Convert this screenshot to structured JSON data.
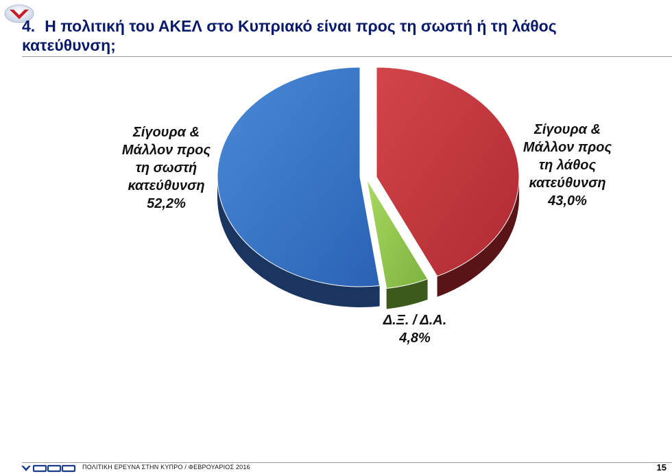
{
  "header": {
    "number": "4.",
    "title": "Η πολιτική του ΑΚΕΛ στο Κυπριακό είναι προς τη σωστή ή τη λάθος κατεύθυνση;"
  },
  "chart_data": {
    "type": "pie",
    "title": "",
    "slices": [
      {
        "label": "Σίγουρα & Μάλλον προς τη λάθος κατεύθυνση",
        "value": 43.0,
        "value_label": "43,0%",
        "color": "#c0343a"
      },
      {
        "label": "Δ.Ξ. / Δ.Α.",
        "value": 4.8,
        "value_label": "4,8%",
        "color": "#8bc34a"
      },
      {
        "label": "Σίγουρα & Μάλλον προς τη σωστή κατεύθυνση",
        "value": 52.2,
        "value_label": "52,2%",
        "color": "#2f6fc0"
      }
    ],
    "labels": {
      "right": [
        "Σίγουρα &",
        "Μάλλον προς",
        "τη λάθος",
        "κατεύθυνση",
        "43,0%"
      ],
      "left": [
        "Σίγουρα &",
        "Μάλλον προς",
        "τη σωστή",
        "κατεύθυνση",
        "52,2%"
      ],
      "dk": [
        "Δ.Ξ. / Δ.Α.",
        "4,8%"
      ]
    }
  },
  "footer": {
    "brand": "GPO",
    "text": "ΠΟΛΙΤΙΚΗ ΕΡΕΥΝΑ ΣΤΗΝ ΚΥΠΡΟ  /  ΦΕΒΡΟΥΑΡΙΟΣ 2016",
    "page": "15"
  },
  "colors": {
    "title": "#0a1a6a",
    "red": "#c0343a",
    "green": "#8bc34a",
    "blue": "#2f6fc0"
  }
}
